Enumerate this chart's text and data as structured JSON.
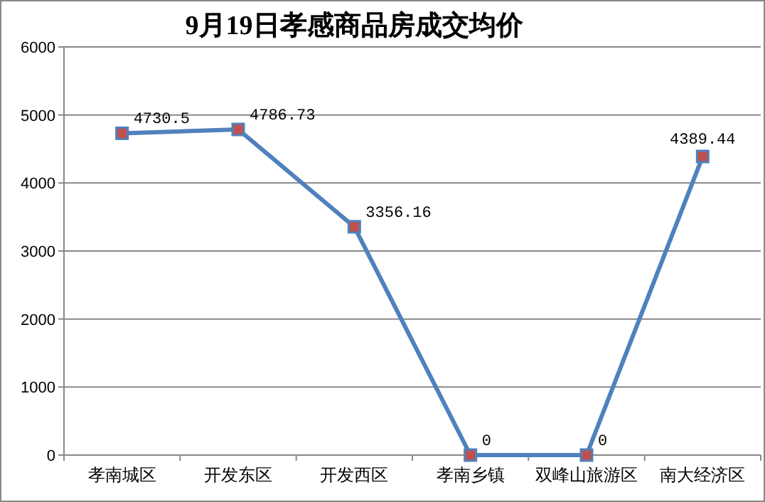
{
  "chart_data": {
    "type": "line",
    "title": "9月19日孝感商品房成交均价",
    "categories": [
      "孝南城区",
      "开发东区",
      "开发西区",
      "孝南乡镇",
      "双峰山旅游区",
      "南大经济区"
    ],
    "series": [
      {
        "color": "#4f81bd",
        "values": [
          4730.5,
          4786.73,
          3356.16,
          0,
          0,
          4389.44
        ]
      }
    ],
    "ylim": [
      0,
      6000
    ],
    "yticks": [
      0,
      1000,
      2000,
      3000,
      4000,
      5000,
      6000
    ],
    "grid": "y",
    "marker": "square",
    "data_labels": true
  }
}
